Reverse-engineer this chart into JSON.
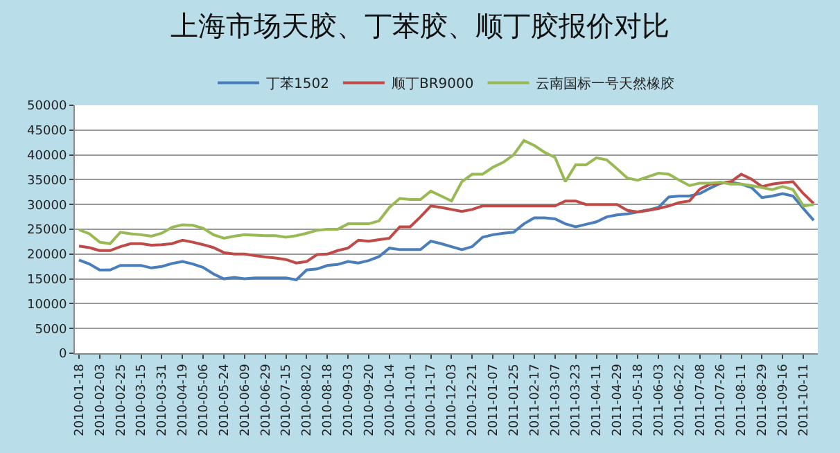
{
  "chart_data": {
    "type": "line",
    "title": "上海市场天胶、丁苯胶、顺丁胶报价对比",
    "categories": [
      "2010-01-18",
      null,
      "2010-02-03",
      null,
      "2010-02-25",
      null,
      "2010-03-15",
      null,
      "2010-03-31",
      null,
      "2010-04-19",
      null,
      "2010-05-06",
      null,
      "2010-05-24",
      null,
      "2010-06-09",
      null,
      "2010-06-29",
      null,
      "2010-07-15",
      null,
      "2010-08-02",
      null,
      "2010-08-18",
      null,
      "2010-09-03",
      null,
      "2010-09-20",
      null,
      "2010-10-14",
      null,
      "2010-11-01",
      null,
      "2010-11-17",
      null,
      "2010-12-03",
      null,
      "2010-12-21",
      null,
      "2011-01-07",
      null,
      "2011-01-25",
      null,
      "2011-02-17",
      null,
      "2011-03-07",
      null,
      "2011-03-23",
      null,
      "2011-04-11",
      null,
      "2011-04-29",
      null,
      "2011-05-18",
      null,
      "2011-06-03",
      null,
      "2011-06-22",
      null,
      "2011-07-08",
      null,
      "2011-07-26",
      null,
      "2011-08-11",
      null,
      "2011-08-29",
      null,
      "2011-09-16",
      null,
      "2011-10-11",
      null
    ],
    "series": [
      {
        "name": "丁苯1502",
        "color": "#4a7ebb",
        "values": [
          18800,
          18000,
          16800,
          16800,
          17700,
          17700,
          17700,
          17200,
          17500,
          18100,
          18500,
          18000,
          17300,
          16000,
          15000,
          15300,
          15000,
          15200,
          15200,
          15200,
          15200,
          14800,
          16800,
          17000,
          17700,
          17900,
          18500,
          18200,
          18700,
          19500,
          21200,
          20900,
          20900,
          20900,
          22600,
          22100,
          21500,
          20900,
          21500,
          23400,
          23900,
          24200,
          24400,
          26100,
          27300,
          27300,
          27100,
          26100,
          25500,
          26000,
          26500,
          27500,
          27900,
          28100,
          28500,
          28900,
          29400,
          31500,
          31700,
          31700,
          32200,
          33300,
          34300,
          34500,
          34100,
          33400,
          31400,
          31700,
          32200,
          31700,
          29200,
          26800
        ]
      },
      {
        "name": "顺丁BR9000",
        "color": "#be4b48",
        "values": [
          21600,
          21300,
          20700,
          20700,
          21500,
          22100,
          22100,
          21800,
          21900,
          22100,
          22800,
          22400,
          21900,
          21300,
          20300,
          20000,
          20000,
          19700,
          19400,
          19200,
          18900,
          18200,
          18500,
          19900,
          20000,
          20700,
          21200,
          22800,
          22600,
          22900,
          23200,
          25500,
          25500,
          27500,
          29700,
          29400,
          29000,
          28600,
          29000,
          29700,
          29700,
          29700,
          29700,
          29700,
          29700,
          29700,
          29700,
          30700,
          30700,
          30000,
          30000,
          30000,
          30000,
          28800,
          28500,
          28800,
          29200,
          29700,
          30400,
          30700,
          33100,
          34100,
          34300,
          34600,
          36100,
          35100,
          33600,
          34100,
          34400,
          34600,
          32200,
          30200
        ]
      },
      {
        "name": "云南国标一号天然橡胶",
        "color": "#98b954",
        "values": [
          24900,
          24100,
          22400,
          22100,
          24400,
          24100,
          23900,
          23600,
          24200,
          25400,
          25900,
          25800,
          25200,
          23900,
          23200,
          23600,
          23900,
          23800,
          23700,
          23700,
          23400,
          23700,
          24200,
          24800,
          25000,
          25000,
          26100,
          26100,
          26100,
          26700,
          29400,
          31200,
          31000,
          31000,
          32700,
          31700,
          30700,
          34600,
          36100,
          36100,
          37500,
          38500,
          40000,
          42900,
          41900,
          40500,
          39500,
          34600,
          38000,
          38000,
          39400,
          39000,
          37200,
          35300,
          34900,
          35600,
          36300,
          36100,
          34900,
          33800,
          34300,
          34300,
          34500,
          34100,
          34100,
          33800,
          33400,
          33000,
          33600,
          33000,
          29700,
          30000
        ]
      }
    ],
    "ylim": [
      0,
      50000
    ],
    "yticks": [
      0,
      5000,
      10000,
      15000,
      20000,
      25000,
      30000,
      35000,
      40000,
      45000,
      50000
    ],
    "grid": "y",
    "legend": "top",
    "marker": "none",
    "line_style": "solid"
  }
}
